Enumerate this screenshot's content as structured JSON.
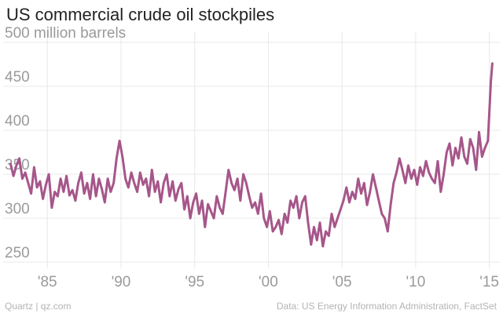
{
  "title": "US commercial crude oil stockpiles",
  "source_left": "Quartz | qz.com",
  "source_right": "Data: US Energy Information Administration, FactSet",
  "colors": {
    "line": "#a6568a",
    "grid": "#e8e8e8",
    "tick_text": "#9a9a9a",
    "title_text": "#222222",
    "footer_text": "#b3b3b3"
  },
  "chart_data": {
    "type": "line",
    "title": "US commercial crude oil stockpiles",
    "xlabel": "",
    "ylabel": "",
    "y_unit_label": "million barrels",
    "xlim": [
      1982.0,
      2015.5
    ],
    "ylim": [
      250,
      500
    ],
    "y_ticks": [
      250,
      300,
      350,
      400,
      450,
      500
    ],
    "y_tick_labels": [
      "250",
      "300",
      "350",
      "400",
      "450",
      "500 million barrels"
    ],
    "x_ticks": [
      1985,
      1990,
      1995,
      2000,
      2005,
      2010,
      2015
    ],
    "x_tick_labels": [
      "'85",
      "'90",
      "'95",
      "'00",
      "'05",
      "'10",
      "'15"
    ],
    "grid": true,
    "series": [
      {
        "values_x": [
          1982.5,
          1982.7,
          1982.9,
          1983.1,
          1983.3,
          1983.5,
          1983.7,
          1983.9,
          1984.1,
          1984.3,
          1984.5,
          1984.7,
          1984.9,
          1985.1,
          1985.3,
          1985.5,
          1985.7,
          1985.9,
          1986.1,
          1986.3,
          1986.5,
          1986.7,
          1986.9,
          1987.1,
          1987.3,
          1987.5,
          1987.7,
          1987.9,
          1988.1,
          1988.3,
          1988.5,
          1988.7,
          1988.9,
          1989.1,
          1989.3,
          1989.5,
          1989.7,
          1989.9,
          1990.1,
          1990.3,
          1990.5,
          1990.7,
          1990.9,
          1991.1,
          1991.3,
          1991.5,
          1991.7,
          1991.9,
          1992.1,
          1992.3,
          1992.5,
          1992.7,
          1992.9,
          1993.1,
          1993.3,
          1993.5,
          1993.7,
          1993.9,
          1994.1,
          1994.3,
          1994.5,
          1994.7,
          1994.9,
          1995.1,
          1995.3,
          1995.5,
          1995.7,
          1995.9,
          1996.1,
          1996.3,
          1996.5,
          1996.7,
          1996.9,
          1997.1,
          1997.3,
          1997.5,
          1997.7,
          1997.9,
          1998.1,
          1998.3,
          1998.5,
          1998.7,
          1998.9,
          1999.1,
          1999.3,
          1999.5,
          1999.7,
          1999.9,
          2000.1,
          2000.3,
          2000.5,
          2000.7,
          2000.9,
          2001.1,
          2001.3,
          2001.5,
          2001.7,
          2001.9,
          2002.1,
          2002.3,
          2002.5,
          2002.7,
          2002.9,
          2003.1,
          2003.3,
          2003.5,
          2003.7,
          2003.9,
          2004.1,
          2004.3,
          2004.5,
          2004.7,
          2004.9,
          2005.1,
          2005.3,
          2005.5,
          2005.7,
          2005.9,
          2006.1,
          2006.3,
          2006.5,
          2006.7,
          2006.9,
          2007.1,
          2007.3,
          2007.5,
          2007.7,
          2007.9,
          2008.1,
          2008.3,
          2008.5,
          2008.7,
          2008.9,
          2009.1,
          2009.3,
          2009.5,
          2009.7,
          2009.9,
          2010.1,
          2010.3,
          2010.5,
          2010.7,
          2010.9,
          2011.1,
          2011.3,
          2011.5,
          2011.7,
          2011.9,
          2012.1,
          2012.3,
          2012.5,
          2012.7,
          2012.9,
          2013.1,
          2013.3,
          2013.5,
          2013.7,
          2013.9,
          2014.1,
          2014.3,
          2014.5,
          2014.7,
          2014.9,
          2015.0,
          2015.1,
          2015.2
        ],
        "values_y": [
          362,
          348,
          360,
          368,
          345,
          352,
          340,
          328,
          358,
          335,
          342,
          322,
          338,
          350,
          312,
          330,
          325,
          345,
          330,
          348,
          326,
          332,
          320,
          340,
          352,
          328,
          340,
          322,
          350,
          325,
          345,
          333,
          318,
          345,
          330,
          340,
          368,
          388,
          370,
          345,
          335,
          352,
          340,
          330,
          352,
          338,
          345,
          325,
          355,
          330,
          342,
          318,
          340,
          350,
          325,
          342,
          320,
          333,
          340,
          310,
          325,
          300,
          318,
          328,
          305,
          320,
          290,
          316,
          308,
          300,
          325,
          312,
          305,
          330,
          355,
          340,
          332,
          345,
          320,
          350,
          340,
          325,
          312,
          318,
          305,
          328,
          300,
          290,
          308,
          285,
          290,
          298,
          282,
          305,
          295,
          320,
          312,
          325,
          300,
          318,
          325,
          295,
          270,
          290,
          275,
          295,
          268,
          285,
          280,
          305,
          290,
          300,
          310,
          320,
          335,
          318,
          330,
          322,
          345,
          328,
          340,
          315,
          330,
          350,
          335,
          320,
          305,
          300,
          285,
          315,
          340,
          352,
          368,
          355,
          340,
          360,
          345,
          355,
          338,
          358,
          348,
          365,
          352,
          345,
          340,
          365,
          330,
          350,
          375,
          385,
          360,
          380,
          368,
          392,
          370,
          362,
          390,
          380,
          355,
          398,
          370,
          380,
          388,
          420,
          455,
          476
        ]
      }
    ]
  }
}
